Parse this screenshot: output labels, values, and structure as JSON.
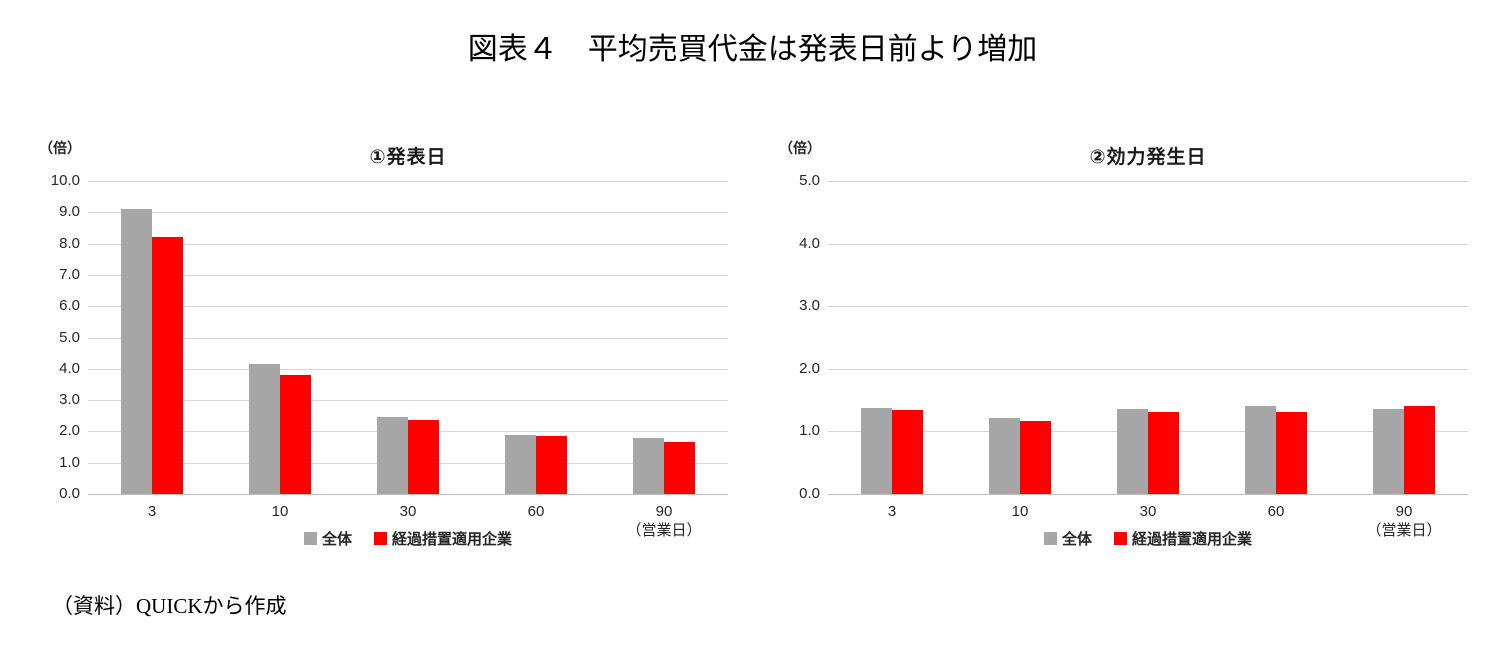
{
  "page": {
    "title": "図表４　平均売買代金は発表日前より増加",
    "source": "（資料）QUICKから作成"
  },
  "chart_data": [
    {
      "type": "bar",
      "title": "①発表日",
      "unit_label": "（倍）",
      "categories": [
        "3",
        "10",
        "30",
        "60",
        "90"
      ],
      "xaxis_note": "（営業日）",
      "series": [
        {
          "name": "全体",
          "color": "#a6a6a6",
          "values": [
            9.1,
            4.15,
            2.45,
            1.9,
            1.8
          ]
        },
        {
          "name": "経過措置適用企業",
          "color": "#ff0000",
          "values": [
            8.2,
            3.8,
            2.35,
            1.85,
            1.65
          ]
        }
      ],
      "ylim": [
        0,
        10
      ],
      "ytick_step": 1,
      "ytick_labels": [
        "0.0",
        "1.0",
        "2.0",
        "3.0",
        "4.0",
        "5.0",
        "6.0",
        "7.0",
        "8.0",
        "9.0",
        "10.0"
      ],
      "grid": true,
      "legend_position": "bottom"
    },
    {
      "type": "bar",
      "title": "②効力発生日",
      "unit_label": "（倍）",
      "categories": [
        "3",
        "10",
        "30",
        "60",
        "90"
      ],
      "xaxis_note": "（営業日）",
      "series": [
        {
          "name": "全体",
          "color": "#a6a6a6",
          "values": [
            1.37,
            1.21,
            1.36,
            1.4,
            1.36
          ]
        },
        {
          "name": "経過措置適用企業",
          "color": "#ff0000",
          "values": [
            1.34,
            1.17,
            1.31,
            1.31,
            1.41
          ]
        }
      ],
      "ylim": [
        0,
        5
      ],
      "ytick_step": 1,
      "ytick_labels": [
        "0.0",
        "1.0",
        "2.0",
        "3.0",
        "4.0",
        "5.0"
      ],
      "grid": true,
      "legend_position": "bottom"
    }
  ]
}
